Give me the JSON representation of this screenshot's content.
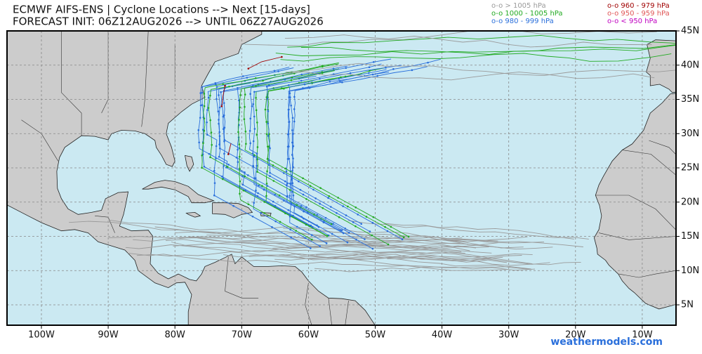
{
  "header": {
    "title": "ECMWF AIFS-ENS | Cyclone Locations --> Next [15-days]",
    "subtitle": "FORECAST INIT: 06Z12AUG2026 --> UNTIL 06Z27AUG2026"
  },
  "legend": [
    {
      "label": "o-o > 1005 hPa",
      "color": "#9a9a9a"
    },
    {
      "label": "o-o 1000 - 1005 hPa",
      "color": "#22aa22"
    },
    {
      "label": "o-o 980 - 999 hPa",
      "color": "#2a6fdb"
    },
    {
      "label": "o-o 960 - 979 hPa",
      "color": "#a00000"
    },
    {
      "label": "o-o 950 - 959 hPa",
      "color": "#e05555"
    },
    {
      "label": "o-o < 950 hPa",
      "color": "#c000c0"
    }
  ],
  "axes": {
    "lon_labels": [
      "100W",
      "90W",
      "80W",
      "70W",
      "60W",
      "50W",
      "40W",
      "30W",
      "20W",
      "10W"
    ],
    "lat_labels": [
      "45N",
      "40N",
      "35N",
      "30N",
      "25N",
      "20N",
      "15N",
      "10N",
      "5N"
    ]
  },
  "watermark": "weathermodels.com"
}
